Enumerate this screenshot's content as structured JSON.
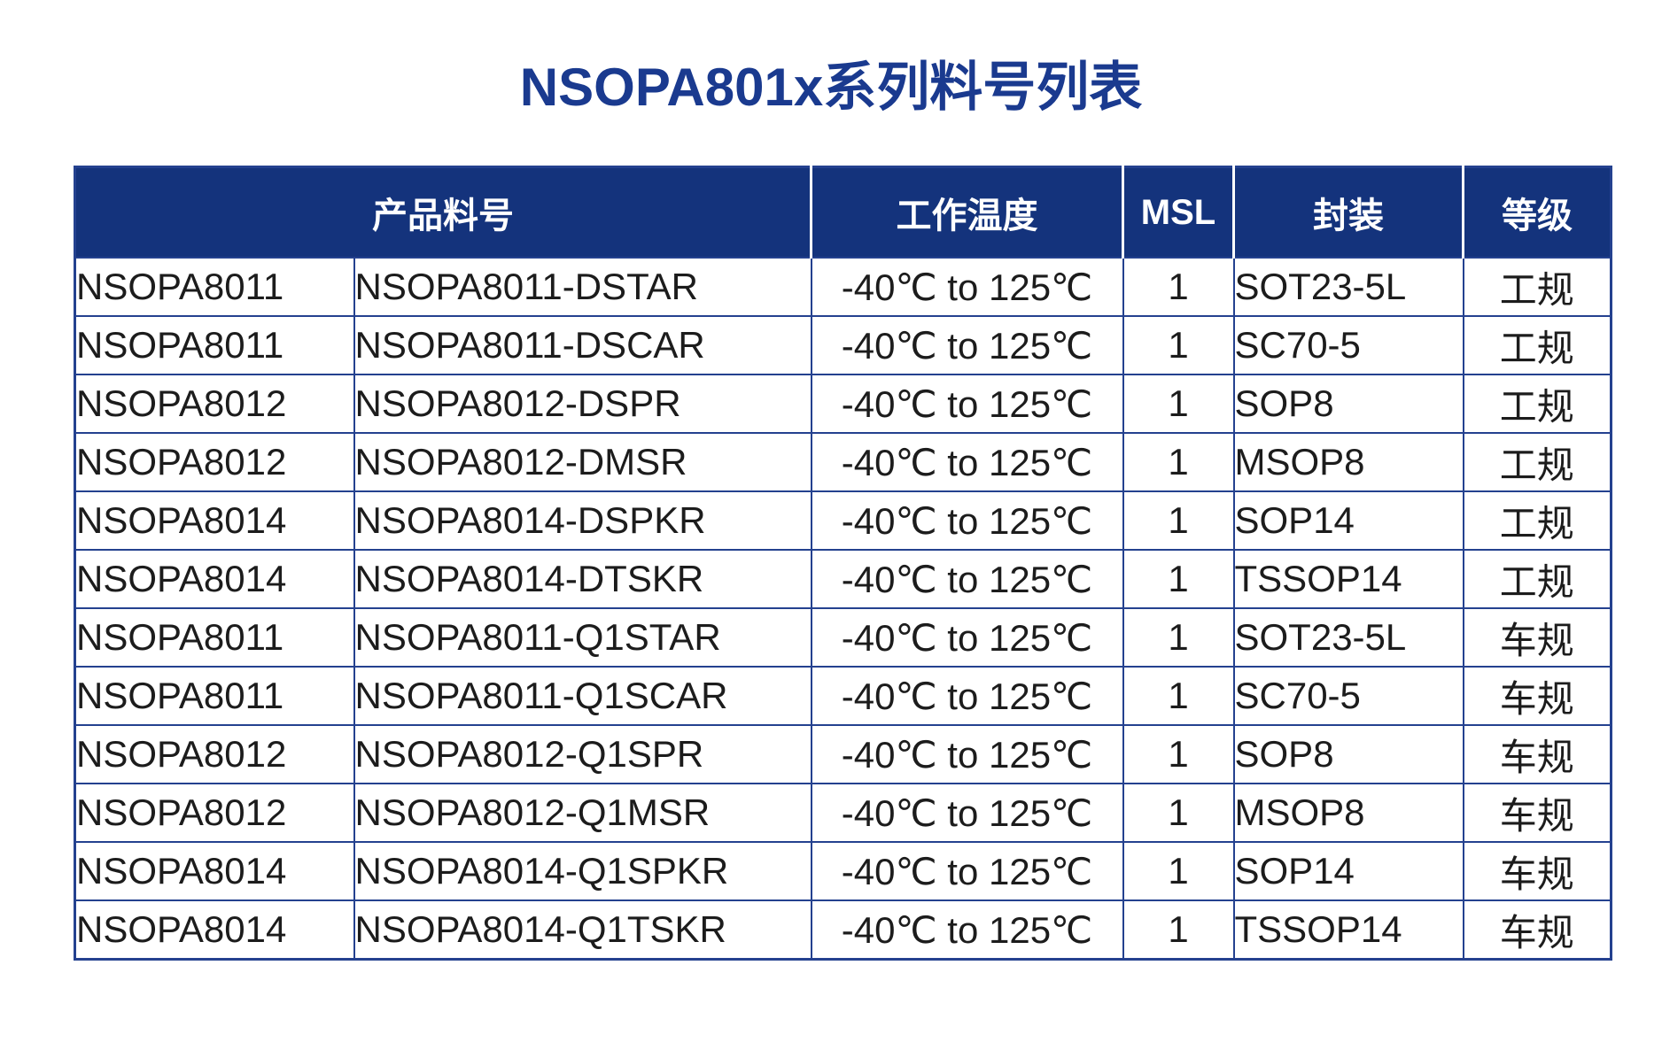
{
  "page": {
    "title": "NSOPA801x系列料号列表"
  },
  "colors": {
    "title_text": "#1a3a8f",
    "header_bg": "#14337c",
    "header_text": "#ffffff",
    "border": "#24418f",
    "body_text": "#1c1c1c"
  },
  "table": {
    "headers": [
      {
        "label": "产品料号",
        "colspan": 2
      },
      {
        "label": "工作温度",
        "colspan": 1
      },
      {
        "label": "MSL",
        "colspan": 1
      },
      {
        "label": "封装",
        "colspan": 1
      },
      {
        "label": "等级",
        "colspan": 1
      }
    ],
    "rows": [
      [
        "NSOPA8011",
        "NSOPA8011-DSTAR",
        "-40℃ to 125℃",
        "1",
        "SOT23-5L",
        "工规"
      ],
      [
        "NSOPA8011",
        "NSOPA8011-DSCAR",
        "-40℃ to 125℃",
        "1",
        "SC70-5",
        "工规"
      ],
      [
        "NSOPA8012",
        "NSOPA8012-DSPR",
        "-40℃ to 125℃",
        "1",
        "SOP8",
        "工规"
      ],
      [
        "NSOPA8012",
        "NSOPA8012-DMSR",
        "-40℃ to 125℃",
        "1",
        "MSOP8",
        "工规"
      ],
      [
        "NSOPA8014",
        "NSOPA8014-DSPKR",
        "-40℃ to 125℃",
        "1",
        "SOP14",
        "工规"
      ],
      [
        "NSOPA8014",
        "NSOPA8014-DTSKR",
        "-40℃ to 125℃",
        "1",
        "TSSOP14",
        "工规"
      ],
      [
        "NSOPA8011",
        "NSOPA8011-Q1STAR",
        "-40℃ to 125℃",
        "1",
        "SOT23-5L",
        "车规"
      ],
      [
        "NSOPA8011",
        "NSOPA8011-Q1SCAR",
        "-40℃ to 125℃",
        "1",
        "SC70-5",
        "车规"
      ],
      [
        "NSOPA8012",
        "NSOPA8012-Q1SPR",
        "-40℃ to 125℃",
        "1",
        "SOP8",
        "车规"
      ],
      [
        "NSOPA8012",
        "NSOPA8012-Q1MSR",
        "-40℃ to 125℃",
        "1",
        "MSOP8",
        "车规"
      ],
      [
        "NSOPA8014",
        "NSOPA8014-Q1SPKR",
        "-40℃ to 125℃",
        "1",
        "SOP14",
        "车规"
      ],
      [
        "NSOPA8014",
        "NSOPA8014-Q1TSKR",
        "-40℃ to 125℃",
        "1",
        "TSSOP14",
        "车规"
      ]
    ]
  }
}
